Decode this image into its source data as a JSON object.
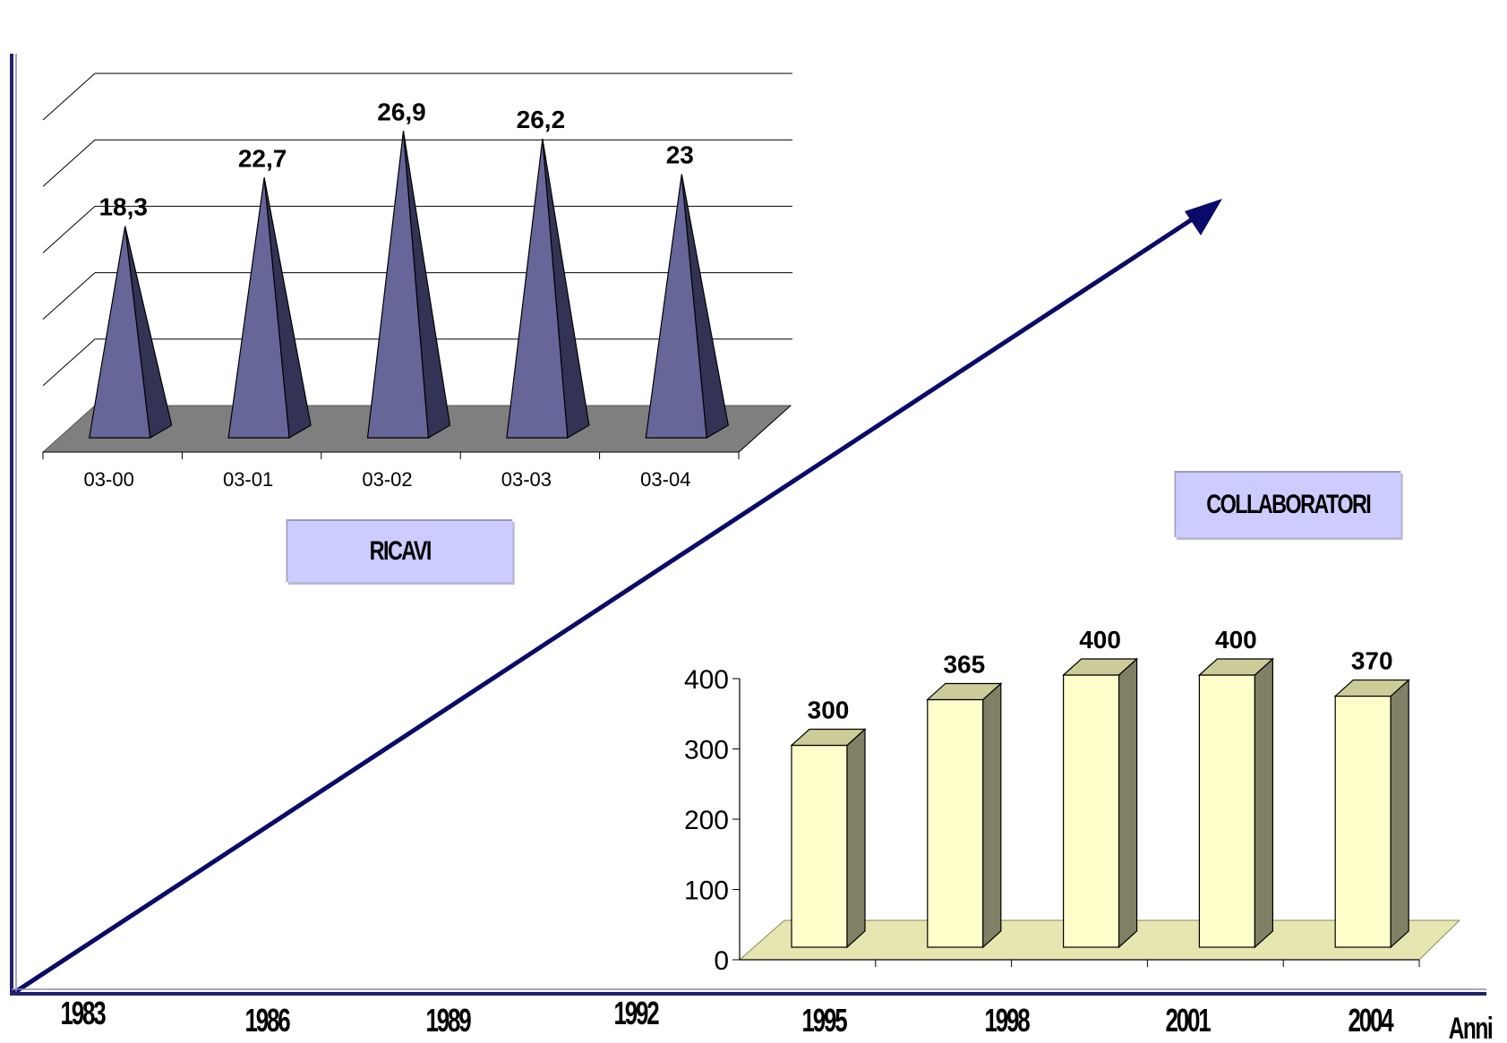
{
  "colors": {
    "axis": "#22226a",
    "arrow": "#0a0a6a",
    "pyramid_front": "#666699",
    "pyramid_side": "#333355",
    "floor_ricavi": "#7f7f7f",
    "bar_front": "#ffffcc",
    "bar_side": "#808066",
    "bar_top": "#cccc99",
    "label_box": "#ccccff"
  },
  "timeline": {
    "years": [
      "1983",
      "1986",
      "1989",
      "1992",
      "1995",
      "1998",
      "2001",
      "2004"
    ],
    "axis_label": "Anni"
  },
  "ricavi": {
    "label": "RICAVI"
  },
  "collaboratori": {
    "label": "COLLABORATORI"
  },
  "chart_data": [
    {
      "type": "bar",
      "style": "3d-pyramid",
      "categories": [
        "03-00",
        "03-01",
        "03-02",
        "03-03",
        "03-04"
      ],
      "values": [
        18.3,
        22.7,
        26.9,
        26.2,
        23
      ],
      "data_labels": [
        "18,3",
        "22,7",
        "26,9",
        "26,2",
        "23"
      ],
      "ylim": [
        0,
        30
      ],
      "grid": true
    },
    {
      "type": "bar",
      "style": "3d-column",
      "categories": [
        "",
        "",
        "",
        "",
        ""
      ],
      "values": [
        300,
        365,
        400,
        400,
        370
      ],
      "data_labels": [
        "300",
        "365",
        "400",
        "400",
        "370"
      ],
      "yticks": [
        "0",
        "100",
        "200",
        "300",
        "400"
      ],
      "ylim": [
        0,
        400
      ],
      "grid": false
    }
  ]
}
